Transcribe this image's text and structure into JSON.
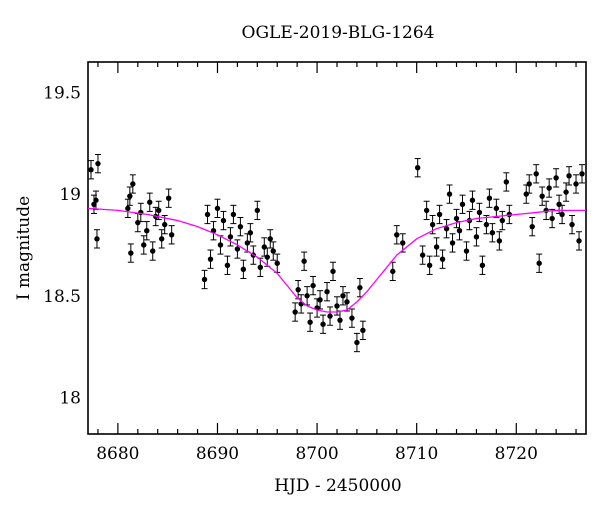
{
  "chart_data": {
    "type": "scatter",
    "title": "OGLE-2019-BLG-1264",
    "xlabel": "HJD - 2450000",
    "ylabel": "I magnitude",
    "xlim": [
      8677,
      8727
    ],
    "ylim": [
      19.65,
      17.82
    ],
    "y_inverted": true,
    "x_ticks": [
      8680,
      8690,
      8700,
      8710,
      8720
    ],
    "y_ticks": [
      18,
      18.5,
      19,
      19.5
    ],
    "x_tick_labels": [
      "8680",
      "8690",
      "8700",
      "8710",
      "8720"
    ],
    "y_tick_labels": [
      "18",
      "18.5",
      "19",
      "19.5"
    ],
    "grid": false,
    "colors": {
      "points": "#000000",
      "model": "#ff00ff",
      "frame": "#000000"
    },
    "series": [
      {
        "kind": "points",
        "x": [
          8677.3,
          8677.6,
          8677.8,
          8677.9,
          8678.0,
          8681.0,
          8681.2,
          8681.3,
          8681.5,
          8682.0,
          8682.3,
          8682.6,
          8682.9,
          8683.2,
          8683.5,
          8683.8,
          8684.1,
          8684.4,
          8684.7,
          8685.1,
          8685.4,
          8688.7,
          8689.0,
          8689.3,
          8689.6,
          8690.0,
          8690.3,
          8690.6,
          8691.0,
          8691.3,
          8691.6,
          8692.0,
          8692.3,
          8692.6,
          8693.0,
          8693.3,
          8693.6,
          8694.0,
          8694.3,
          8694.7,
          8695.0,
          8695.3,
          8695.6,
          8696.0,
          8697.8,
          8698.1,
          8698.4,
          8698.7,
          8699.0,
          8699.3,
          8699.6,
          8700.0,
          8700.3,
          8700.6,
          8701.0,
          8701.3,
          8701.6,
          8702.0,
          8702.3,
          8702.6,
          8703.0,
          8703.5,
          8704.0,
          8704.3,
          8704.6,
          8707.6,
          8708.0,
          8708.6,
          8710.1,
          8710.6,
          8711.0,
          8711.3,
          8711.6,
          8712.0,
          8712.3,
          8712.6,
          8713.0,
          8713.3,
          8713.6,
          8714.0,
          8714.3,
          8714.6,
          8715.0,
          8715.3,
          8715.6,
          8716.0,
          8716.3,
          8716.6,
          8717.0,
          8717.3,
          8717.6,
          8718.0,
          8718.3,
          8718.6,
          8719.0,
          8719.3,
          8721.0,
          8721.3,
          8721.6,
          8722.0,
          8722.3,
          8722.6,
          8723.0,
          8723.3,
          8723.6,
          8724.0,
          8724.3,
          8724.6,
          8725.0,
          8725.3,
          8725.6,
          8726.0,
          8726.3,
          8726.6
        ],
        "y": [
          19.12,
          18.95,
          18.97,
          18.78,
          19.15,
          18.93,
          18.99,
          18.71,
          19.05,
          18.86,
          18.91,
          18.75,
          18.82,
          18.96,
          18.72,
          18.89,
          18.92,
          18.78,
          18.85,
          18.98,
          18.8,
          18.58,
          18.9,
          18.68,
          18.82,
          18.93,
          18.75,
          18.87,
          18.65,
          18.79,
          18.9,
          18.73,
          18.84,
          18.63,
          18.76,
          18.81,
          18.7,
          18.92,
          18.64,
          18.74,
          18.69,
          18.78,
          18.72,
          18.66,
          18.42,
          18.53,
          18.46,
          18.67,
          18.5,
          18.37,
          18.55,
          18.44,
          18.48,
          18.36,
          18.52,
          18.4,
          18.62,
          18.45,
          18.38,
          18.5,
          18.47,
          18.39,
          18.27,
          18.54,
          18.33,
          18.62,
          18.8,
          18.76,
          19.13,
          18.7,
          18.92,
          18.65,
          18.85,
          18.74,
          18.9,
          18.68,
          18.83,
          19.0,
          18.76,
          18.88,
          18.82,
          18.95,
          18.72,
          18.87,
          18.97,
          18.79,
          18.91,
          18.65,
          18.85,
          18.98,
          18.81,
          18.93,
          18.77,
          18.87,
          19.06,
          18.9,
          19.0,
          19.05,
          18.84,
          19.1,
          18.66,
          18.99,
          18.92,
          19.03,
          18.88,
          19.08,
          18.95,
          18.9,
          19.01,
          19.09,
          18.85,
          19.05,
          18.77,
          19.1
        ],
        "yerr": 0.045
      },
      {
        "kind": "line",
        "x": [
          8677,
          8680,
          8683,
          8686,
          8688,
          8690,
          8692,
          8694,
          8696,
          8697,
          8698,
          8699,
          8700,
          8701,
          8702,
          8703,
          8704,
          8705,
          8706,
          8707,
          8708,
          8710,
          8712,
          8714,
          8716,
          8718,
          8720,
          8722,
          8724,
          8727
        ],
        "y": [
          18.93,
          18.92,
          18.9,
          18.87,
          18.84,
          18.8,
          18.75,
          18.69,
          18.61,
          18.55,
          18.49,
          18.45,
          18.43,
          18.42,
          18.42,
          18.43,
          18.47,
          18.52,
          18.58,
          18.64,
          18.7,
          18.78,
          18.83,
          18.86,
          18.88,
          18.89,
          18.9,
          18.91,
          18.92,
          18.92
        ]
      }
    ]
  }
}
